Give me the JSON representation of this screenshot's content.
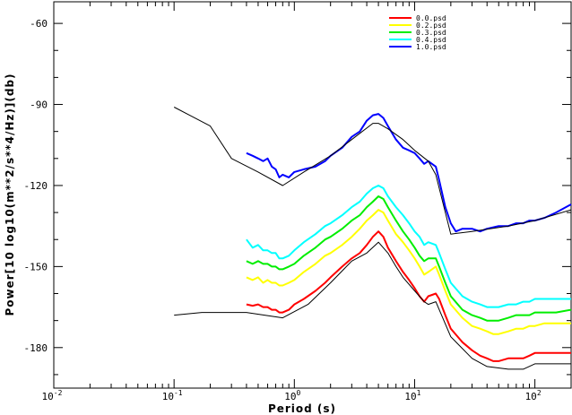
{
  "chart_data": {
    "type": "line",
    "xlabel": "Period (s)",
    "ylabel": "Power[10 log10(m**2/s**4/Hz)](db)",
    "xscale": "log",
    "xlim": [
      0.01,
      200
    ],
    "ylim": [
      -195,
      -52
    ],
    "x_tick_labels": [
      {
        "value": 0.01,
        "base": "10",
        "exp": "-2"
      },
      {
        "value": 0.1,
        "base": "10",
        "exp": "-1"
      },
      {
        "value": 1,
        "base": "10",
        "exp": "0"
      },
      {
        "value": 10,
        "base": "10",
        "exp": "1"
      },
      {
        "value": 100,
        "base": "10",
        "exp": "2"
      }
    ],
    "y_ticks": [
      -60,
      -90,
      -120,
      -150,
      -180
    ],
    "grid": false,
    "legend_position": "top-right",
    "series": [
      {
        "name": "0.0.psd",
        "color": "#ff0000",
        "points": [
          [
            0.4,
            -164
          ],
          [
            0.45,
            -164.5
          ],
          [
            0.5,
            -164
          ],
          [
            0.55,
            -165
          ],
          [
            0.6,
            -165
          ],
          [
            0.65,
            -166
          ],
          [
            0.7,
            -166
          ],
          [
            0.75,
            -167
          ],
          [
            0.8,
            -167
          ],
          [
            0.9,
            -166
          ],
          [
            1.0,
            -164
          ],
          [
            1.2,
            -162
          ],
          [
            1.5,
            -159
          ],
          [
            1.8,
            -156
          ],
          [
            2.0,
            -154
          ],
          [
            2.5,
            -150
          ],
          [
            3.0,
            -147
          ],
          [
            3.5,
            -145
          ],
          [
            4.0,
            -142
          ],
          [
            4.5,
            -139
          ],
          [
            5.0,
            -137
          ],
          [
            5.5,
            -139
          ],
          [
            6.0,
            -143
          ],
          [
            7.0,
            -148
          ],
          [
            8.0,
            -152
          ],
          [
            9.0,
            -155
          ],
          [
            10,
            -158
          ],
          [
            11,
            -161
          ],
          [
            12,
            -163
          ],
          [
            13,
            -161
          ],
          [
            15,
            -160
          ],
          [
            16,
            -162
          ],
          [
            18,
            -168
          ],
          [
            20,
            -173
          ],
          [
            25,
            -178
          ],
          [
            30,
            -181
          ],
          [
            35,
            -183
          ],
          [
            40,
            -184
          ],
          [
            45,
            -185
          ],
          [
            50,
            -185
          ],
          [
            60,
            -184
          ],
          [
            70,
            -184
          ],
          [
            80,
            -184
          ],
          [
            90,
            -183
          ],
          [
            100,
            -182
          ],
          [
            120,
            -182
          ],
          [
            150,
            -182
          ],
          [
            200,
            -182
          ]
        ]
      },
      {
        "name": "0.2.psd",
        "color": "#ffff00",
        "points": [
          [
            0.4,
            -154
          ],
          [
            0.45,
            -155
          ],
          [
            0.5,
            -154
          ],
          [
            0.55,
            -156
          ],
          [
            0.6,
            -155
          ],
          [
            0.65,
            -156
          ],
          [
            0.7,
            -156
          ],
          [
            0.75,
            -157
          ],
          [
            0.8,
            -157
          ],
          [
            0.9,
            -156
          ],
          [
            1.0,
            -155
          ],
          [
            1.2,
            -152
          ],
          [
            1.5,
            -149
          ],
          [
            1.8,
            -146
          ],
          [
            2.0,
            -145
          ],
          [
            2.5,
            -142
          ],
          [
            3.0,
            -139
          ],
          [
            3.5,
            -136
          ],
          [
            4.0,
            -133
          ],
          [
            4.5,
            -131
          ],
          [
            5.0,
            -129
          ],
          [
            5.5,
            -130
          ],
          [
            6.0,
            -133
          ],
          [
            7.0,
            -138
          ],
          [
            8.0,
            -141
          ],
          [
            9.0,
            -144
          ],
          [
            10,
            -147
          ],
          [
            11,
            -150
          ],
          [
            12,
            -153
          ],
          [
            13,
            -152
          ],
          [
            15,
            -150
          ],
          [
            16,
            -153
          ],
          [
            18,
            -159
          ],
          [
            20,
            -164
          ],
          [
            25,
            -169
          ],
          [
            30,
            -172
          ],
          [
            35,
            -173
          ],
          [
            40,
            -174
          ],
          [
            45,
            -175
          ],
          [
            50,
            -175
          ],
          [
            60,
            -174
          ],
          [
            70,
            -173
          ],
          [
            80,
            -173
          ],
          [
            90,
            -172
          ],
          [
            100,
            -172
          ],
          [
            120,
            -171
          ],
          [
            150,
            -171
          ],
          [
            200,
            -171
          ]
        ]
      },
      {
        "name": "0.3.psd",
        "color": "#00ee00",
        "points": [
          [
            0.4,
            -148
          ],
          [
            0.45,
            -149
          ],
          [
            0.5,
            -148
          ],
          [
            0.55,
            -149
          ],
          [
            0.6,
            -149
          ],
          [
            0.65,
            -150
          ],
          [
            0.7,
            -150
          ],
          [
            0.75,
            -151
          ],
          [
            0.8,
            -151
          ],
          [
            0.9,
            -150
          ],
          [
            1.0,
            -149
          ],
          [
            1.2,
            -146
          ],
          [
            1.5,
            -143
          ],
          [
            1.8,
            -140
          ],
          [
            2.0,
            -139
          ],
          [
            2.5,
            -136
          ],
          [
            3.0,
            -133
          ],
          [
            3.5,
            -131
          ],
          [
            4.0,
            -128
          ],
          [
            4.5,
            -126
          ],
          [
            5.0,
            -124
          ],
          [
            5.5,
            -125
          ],
          [
            6.0,
            -128
          ],
          [
            7.0,
            -133
          ],
          [
            8.0,
            -137
          ],
          [
            9.0,
            -140
          ],
          [
            10,
            -143
          ],
          [
            11,
            -146
          ],
          [
            12,
            -148
          ],
          [
            13,
            -147
          ],
          [
            15,
            -147
          ],
          [
            16,
            -150
          ],
          [
            18,
            -156
          ],
          [
            20,
            -161
          ],
          [
            25,
            -166
          ],
          [
            30,
            -168
          ],
          [
            35,
            -169
          ],
          [
            40,
            -170
          ],
          [
            45,
            -170
          ],
          [
            50,
            -170
          ],
          [
            60,
            -169
          ],
          [
            70,
            -168
          ],
          [
            80,
            -168
          ],
          [
            90,
            -168
          ],
          [
            100,
            -167
          ],
          [
            120,
            -167
          ],
          [
            150,
            -167
          ],
          [
            200,
            -166
          ]
        ]
      },
      {
        "name": "0.4.psd",
        "color": "#00ffff",
        "points": [
          [
            0.4,
            -140
          ],
          [
            0.45,
            -143
          ],
          [
            0.5,
            -142
          ],
          [
            0.55,
            -144
          ],
          [
            0.6,
            -144
          ],
          [
            0.65,
            -145
          ],
          [
            0.7,
            -145
          ],
          [
            0.75,
            -147
          ],
          [
            0.8,
            -147
          ],
          [
            0.9,
            -146
          ],
          [
            1.0,
            -144
          ],
          [
            1.2,
            -141
          ],
          [
            1.5,
            -138
          ],
          [
            1.8,
            -135
          ],
          [
            2.0,
            -134
          ],
          [
            2.5,
            -131
          ],
          [
            3.0,
            -128
          ],
          [
            3.5,
            -126
          ],
          [
            4.0,
            -123
          ],
          [
            4.5,
            -121
          ],
          [
            5.0,
            -120
          ],
          [
            5.5,
            -121
          ],
          [
            6.0,
            -124
          ],
          [
            7.0,
            -128
          ],
          [
            8.0,
            -131
          ],
          [
            9.0,
            -134
          ],
          [
            10,
            -137
          ],
          [
            11,
            -139
          ],
          [
            12,
            -142
          ],
          [
            13,
            -141
          ],
          [
            15,
            -142
          ],
          [
            16,
            -145
          ],
          [
            18,
            -151
          ],
          [
            20,
            -156
          ],
          [
            25,
            -161
          ],
          [
            30,
            -163
          ],
          [
            35,
            -164
          ],
          [
            40,
            -165
          ],
          [
            45,
            -165
          ],
          [
            50,
            -165
          ],
          [
            60,
            -164
          ],
          [
            70,
            -164
          ],
          [
            80,
            -163
          ],
          [
            90,
            -163
          ],
          [
            100,
            -162
          ],
          [
            120,
            -162
          ],
          [
            150,
            -162
          ],
          [
            200,
            -162
          ]
        ]
      },
      {
        "name": "1.0.psd",
        "color": "#0000ff",
        "points": [
          [
            0.4,
            -108
          ],
          [
            0.45,
            -109
          ],
          [
            0.5,
            -110
          ],
          [
            0.55,
            -111
          ],
          [
            0.6,
            -110
          ],
          [
            0.65,
            -113
          ],
          [
            0.7,
            -114
          ],
          [
            0.75,
            -117
          ],
          [
            0.8,
            -116
          ],
          [
            0.9,
            -117
          ],
          [
            1.0,
            -115
          ],
          [
            1.2,
            -114
          ],
          [
            1.5,
            -113
          ],
          [
            1.8,
            -111
          ],
          [
            2.0,
            -109
          ],
          [
            2.5,
            -106
          ],
          [
            3.0,
            -102
          ],
          [
            3.5,
            -100
          ],
          [
            4.0,
            -96
          ],
          [
            4.5,
            -94
          ],
          [
            5.0,
            -93.5
          ],
          [
            5.5,
            -95
          ],
          [
            6.0,
            -98
          ],
          [
            7.0,
            -103
          ],
          [
            8.0,
            -106
          ],
          [
            9.0,
            -107
          ],
          [
            10,
            -108
          ],
          [
            11,
            -110
          ],
          [
            12,
            -112
          ],
          [
            13,
            -111
          ],
          [
            15,
            -113
          ],
          [
            16,
            -118
          ],
          [
            18,
            -128
          ],
          [
            20,
            -134
          ],
          [
            22,
            -137
          ],
          [
            25,
            -136
          ],
          [
            30,
            -136
          ],
          [
            35,
            -137
          ],
          [
            40,
            -136
          ],
          [
            50,
            -135
          ],
          [
            60,
            -135
          ],
          [
            70,
            -134
          ],
          [
            80,
            -134
          ],
          [
            90,
            -133
          ],
          [
            100,
            -133
          ],
          [
            120,
            -132
          ],
          [
            150,
            -130
          ],
          [
            200,
            -127
          ]
        ]
      },
      {
        "name": "",
        "color": "#000000",
        "points": [
          [
            0.1,
            -91
          ],
          [
            0.2,
            -98
          ],
          [
            0.3,
            -110
          ],
          [
            0.5,
            -115
          ],
          [
            0.8,
            -120
          ],
          [
            1.2,
            -115
          ],
          [
            2.0,
            -109
          ],
          [
            3.0,
            -103
          ],
          [
            4.5,
            -97
          ],
          [
            5.0,
            -97
          ],
          [
            6.0,
            -99
          ],
          [
            8.0,
            -103
          ],
          [
            10,
            -107
          ],
          [
            13,
            -111
          ],
          [
            15,
            -116
          ],
          [
            20,
            -138
          ],
          [
            30,
            -137
          ],
          [
            60,
            -135
          ],
          [
            100,
            -133
          ],
          [
            200,
            -129
          ]
        ]
      },
      {
        "name": "",
        "color": "#000000",
        "points": [
          [
            0.1,
            -168
          ],
          [
            0.17,
            -167
          ],
          [
            0.4,
            -167
          ],
          [
            0.8,
            -169
          ],
          [
            1.3,
            -164
          ],
          [
            2.0,
            -156
          ],
          [
            3.0,
            -148
          ],
          [
            4.0,
            -145
          ],
          [
            5.0,
            -141
          ],
          [
            6.0,
            -145
          ],
          [
            7.0,
            -150
          ],
          [
            8.0,
            -154
          ],
          [
            10,
            -159
          ],
          [
            12,
            -163
          ],
          [
            13,
            -164
          ],
          [
            15,
            -163
          ],
          [
            20,
            -176
          ],
          [
            30,
            -184
          ],
          [
            40,
            -187
          ],
          [
            60,
            -188
          ],
          [
            80,
            -188
          ],
          [
            100,
            -186
          ],
          [
            150,
            -186
          ],
          [
            200,
            -186
          ]
        ]
      }
    ]
  }
}
